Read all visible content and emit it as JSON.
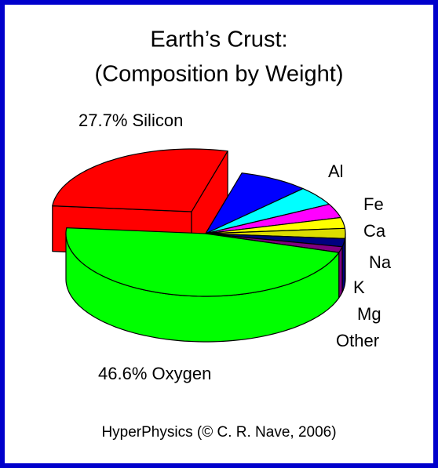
{
  "chart_data": {
    "type": "pie",
    "title": "Earth’s Crust:",
    "subtitle": "(Composition by Weight)",
    "footer": "HyperPhysics (© C. R. Nave, 2006)",
    "labels": [
      "27.7% Silicon",
      "Al",
      "Fe",
      "Ca",
      "Na",
      "K",
      "Mg",
      "Other",
      "46.6% Oxygen"
    ],
    "values": [
      27.7,
      8.1,
      5.0,
      3.6,
      2.8,
      2.6,
      2.1,
      1.5,
      46.6
    ],
    "colors": [
      "#ff0000",
      "#0000ff",
      "#00ffff",
      "#ff00ff",
      "#ffff00",
      "#dddd00",
      "#000080",
      "#800080",
      "#00ff00"
    ],
    "exploded": [
      true,
      false,
      false,
      false,
      false,
      false,
      false,
      false,
      false
    ]
  }
}
